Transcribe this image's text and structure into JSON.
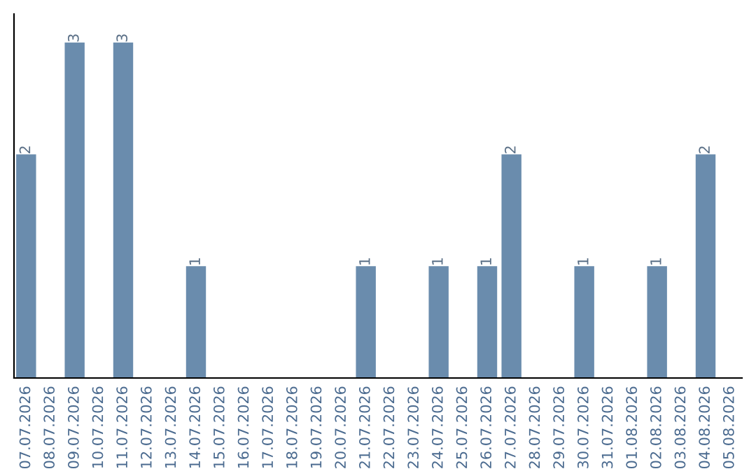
{
  "chart_data": {
    "type": "bar",
    "categories": [
      "07.07.2026",
      "08.07.2026",
      "09.07.2026",
      "10.07.2026",
      "11.07.2026",
      "12.07.2026",
      "13.07.2026",
      "14.07.2026",
      "15.07.2026",
      "16.07.2026",
      "17.07.2026",
      "18.07.2026",
      "19.07.2026",
      "20.07.2026",
      "21.07.2026",
      "22.07.2026",
      "23.07.2026",
      "24.07.2026",
      "25.07.2026",
      "26.07.2026",
      "27.07.2026",
      "28.07.2026",
      "29.07.2026",
      "30.07.2026",
      "31.07.2026",
      "01.08.2026",
      "02.08.2026",
      "03.08.2026",
      "04.08.2026",
      "05.08.2026"
    ],
    "values": [
      2,
      0,
      3,
      0,
      3,
      0,
      0,
      1,
      0,
      0,
      0,
      0,
      0,
      0,
      1,
      0,
      0,
      1,
      0,
      1,
      2,
      0,
      0,
      1,
      0,
      0,
      1,
      0,
      2,
      0
    ],
    "value_labels": [
      "2",
      null,
      "3",
      null,
      "3",
      null,
      null,
      "1",
      null,
      null,
      null,
      null,
      null,
      null,
      "1",
      null,
      null,
      "1",
      null,
      "1",
      "2",
      null,
      null,
      "1",
      null,
      null,
      "1",
      null,
      "2",
      null
    ],
    "color": "#6a8cad",
    "grid": false,
    "legend": false
  }
}
